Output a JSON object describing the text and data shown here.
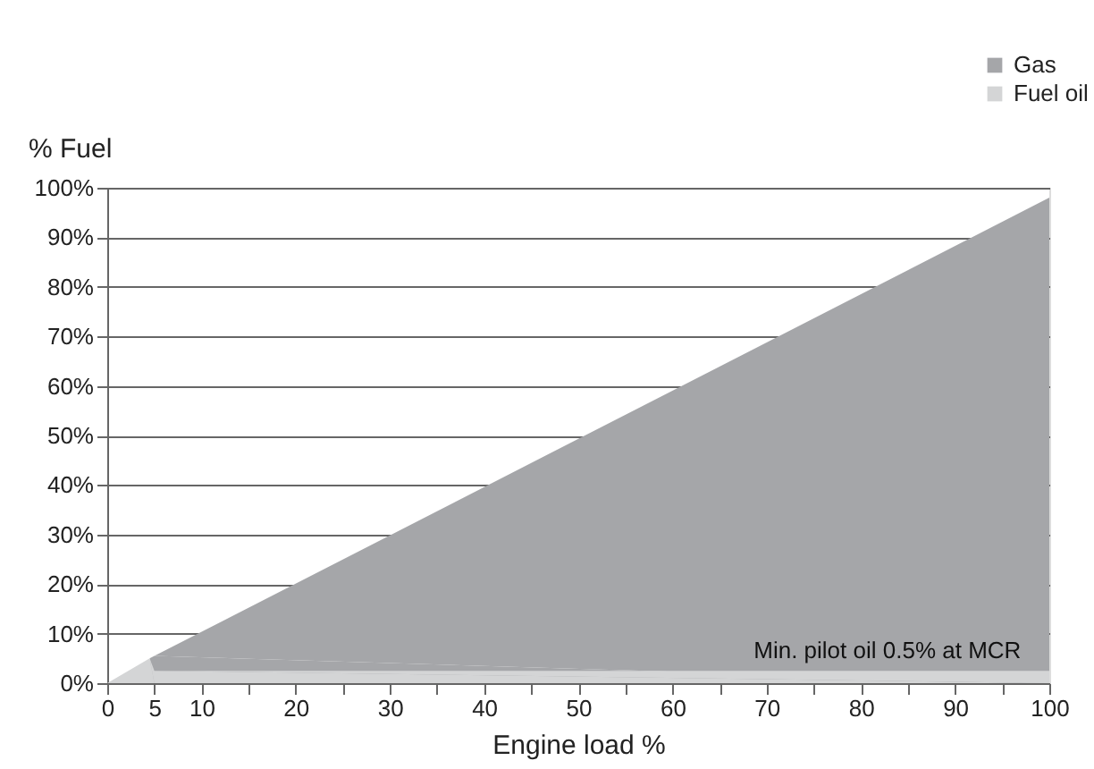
{
  "chart_data": {
    "type": "area",
    "ylabel": "% Fuel",
    "xlabel": "Engine load %",
    "series": [
      {
        "name": "Gas",
        "color": "#a5a6a9",
        "x": [
          4.5,
          5,
          100
        ],
        "values": [
          5,
          5.5,
          98
        ]
      },
      {
        "name": "Fuel oil",
        "color": "#d4d5d6",
        "x": [
          0,
          4.5,
          5,
          100
        ],
        "values": [
          0,
          5,
          2.5,
          2.5
        ]
      }
    ],
    "xlim": [
      0,
      100
    ],
    "ylim": [
      0,
      100
    ],
    "xticks": [
      0,
      5,
      10,
      {
        "value": 15,
        "label": null
      },
      20,
      {
        "value": 25,
        "label": null
      },
      30,
      {
        "value": 35,
        "label": null
      },
      40,
      {
        "value": 45,
        "label": null
      },
      50,
      {
        "value": 55,
        "label": null
      },
      60,
      {
        "value": 65,
        "label": null
      },
      70,
      {
        "value": 75,
        "label": null
      },
      80,
      {
        "value": 85,
        "label": null
      },
      90,
      {
        "value": 95,
        "label": null
      },
      100
    ],
    "yticks": [
      {
        "value": 0,
        "label": "0%"
      },
      {
        "value": 10,
        "label": "10%"
      },
      {
        "value": 20,
        "label": "20%"
      },
      {
        "value": 30,
        "label": "30%"
      },
      {
        "value": 40,
        "label": "40%"
      },
      {
        "value": 50,
        "label": "50%"
      },
      {
        "value": 60,
        "label": "60%"
      },
      {
        "value": 70,
        "label": "70%"
      },
      {
        "value": 80,
        "label": "80%"
      },
      {
        "value": 90,
        "label": "90%"
      },
      {
        "value": 100,
        "label": "100%"
      }
    ],
    "grid": "y",
    "legend": "top right",
    "annotations": [
      {
        "text": "Min. pilot oil 0.5% at MCR",
        "x": 97,
        "y": 2.5
      }
    ]
  }
}
